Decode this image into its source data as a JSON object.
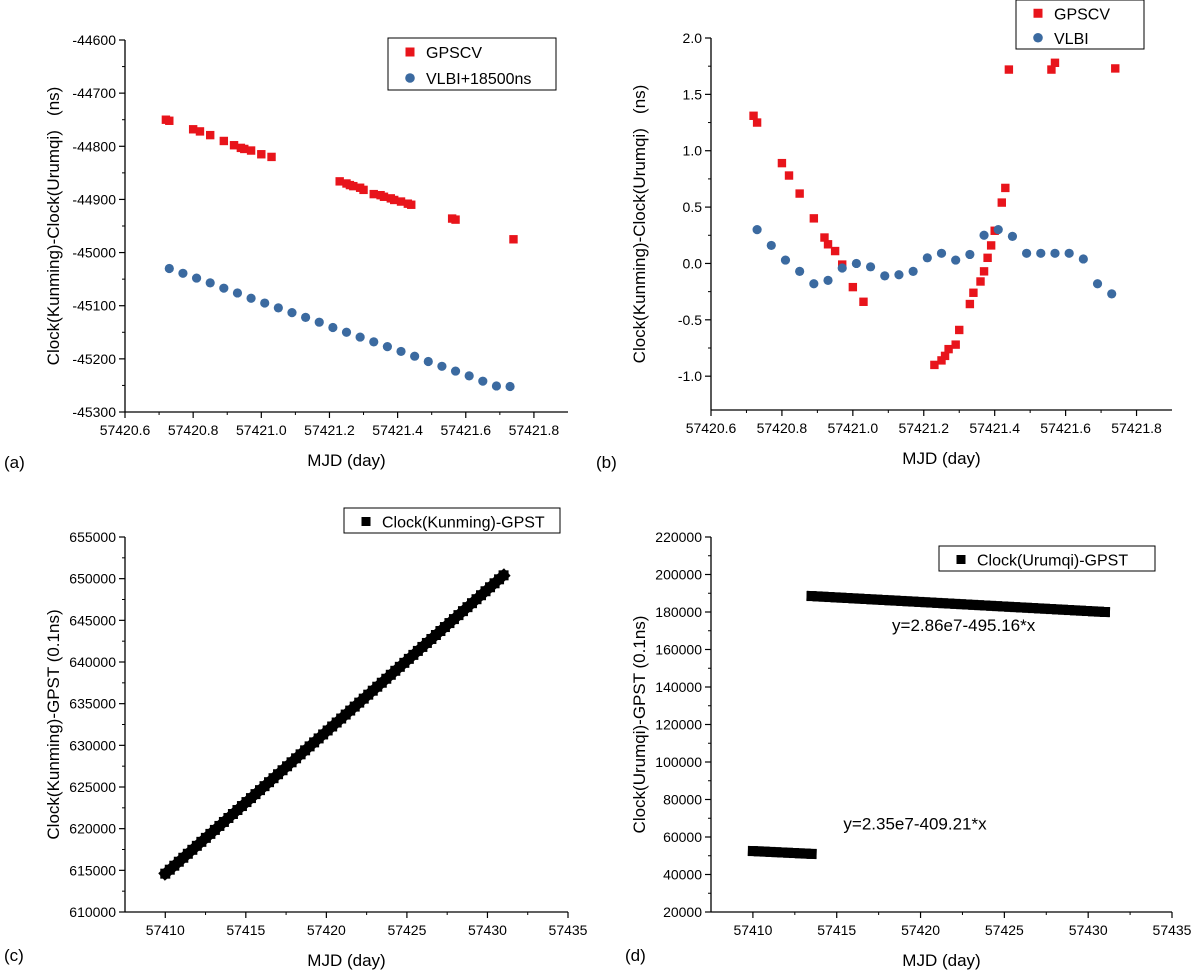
{
  "colors": {
    "red": "#e8141b",
    "blue": "#3b6aa0",
    "black": "#000000"
  },
  "chart_data": [
    {
      "id": "a",
      "type": "scatter",
      "panel_label": "(a)",
      "xlabel": "MJD (day)",
      "ylabel": "Clock(Kunming)-Clock(Urumqi)   (ns)",
      "xlim": [
        57420.6,
        57421.9
      ],
      "ylim": [
        -45300,
        -44600
      ],
      "xticks": [
        57420.6,
        57420.8,
        57421.0,
        57421.2,
        57421.4,
        57421.6,
        57421.8
      ],
      "xtick_labels": [
        "57420.6",
        "57420.8",
        "57421.0",
        "57421.2",
        "57421.4",
        "57421.6",
        "57421.8"
      ],
      "yticks": [
        -45300,
        -45200,
        -45100,
        -45000,
        -44900,
        -44800,
        -44700,
        -44600
      ],
      "ytick_labels": [
        "-45300",
        "-45200",
        "-45100",
        "-45000",
        "-44900",
        "-44800",
        "-44700",
        "-44600"
      ],
      "legend": [
        "GPSCV",
        "VLBI+18500ns"
      ],
      "series": [
        {
          "name": "GPSCV",
          "marker": "square",
          "color": "#e8141b",
          "x": [
            57420.72,
            57420.73,
            57420.8,
            57420.82,
            57420.85,
            57420.89,
            57420.92,
            57420.94,
            57420.95,
            57420.97,
            57421.0,
            57421.03,
            57421.23,
            57421.25,
            57421.26,
            57421.27,
            57421.29,
            57421.3,
            57421.33,
            57421.35,
            57421.36,
            57421.38,
            57421.39,
            57421.41,
            57421.43,
            57421.44,
            57421.56,
            57421.57,
            57421.74
          ],
          "y": [
            -44750,
            -44752,
            -44768,
            -44772,
            -44779,
            -44790,
            -44798,
            -44803,
            -44805,
            -44808,
            -44815,
            -44820,
            -44866,
            -44870,
            -44873,
            -44875,
            -44878,
            -44882,
            -44890,
            -44892,
            -44895,
            -44898,
            -44901,
            -44904,
            -44908,
            -44910,
            -44936,
            -44938,
            -44975
          ]
        },
        {
          "name": "VLBI+18500ns",
          "marker": "circle",
          "color": "#3b6aa0",
          "x": [
            57420.73,
            57420.77,
            57420.81,
            57420.85,
            57420.89,
            57420.93,
            57420.97,
            57421.01,
            57421.05,
            57421.09,
            57421.13,
            57421.17,
            57421.21,
            57421.25,
            57421.29,
            57421.33,
            57421.37,
            57421.41,
            57421.45,
            57421.49,
            57421.53,
            57421.57,
            57421.61,
            57421.65,
            57421.69,
            57421.73
          ],
          "y": [
            -45030,
            -45039,
            -45048,
            -45057,
            -45067,
            -45076,
            -45086,
            -45095,
            -45104,
            -45113,
            -45122,
            -45131,
            -45141,
            -45150,
            -45159,
            -45168,
            -45177,
            -45186,
            -45195,
            -45205,
            -45214,
            -45223,
            -45232,
            -45242,
            -45251,
            -45252
          ]
        }
      ]
    },
    {
      "id": "b",
      "type": "scatter",
      "panel_label": "(b)",
      "xlabel": "MJD (day)",
      "ylabel": "Clock(Kunming)-Clock(Urumqi)   (ns)",
      "xlim": [
        57420.6,
        57421.9
      ],
      "ylim": [
        -1.3,
        2.0
      ],
      "xticks": [
        57420.6,
        57420.8,
        57421.0,
        57421.2,
        57421.4,
        57421.6,
        57421.8
      ],
      "xtick_labels": [
        "57420.6",
        "57420.8",
        "57421.0",
        "57421.2",
        "57421.4",
        "57421.6",
        "57421.8"
      ],
      "yticks": [
        -1.0,
        -0.5,
        0.0,
        0.5,
        1.0,
        1.5,
        2.0
      ],
      "ytick_labels": [
        "-1.0",
        "-0.5",
        "0.0",
        "0.5",
        "1.0",
        "1.5",
        "2.0"
      ],
      "legend": [
        "GPSCV",
        "VLBI"
      ],
      "series": [
        {
          "name": "GPSCV",
          "marker": "square",
          "color": "#e8141b",
          "x": [
            57420.72,
            57420.73,
            57420.8,
            57420.82,
            57420.85,
            57420.89,
            57420.92,
            57420.93,
            57420.95,
            57420.97,
            57421.0,
            57421.03,
            57421.23,
            57421.25,
            57421.26,
            57421.27,
            57421.29,
            57421.3,
            57421.33,
            57421.34,
            57421.36,
            57421.37,
            57421.38,
            57421.39,
            57421.4,
            57421.42,
            57421.43,
            57421.44,
            57421.56,
            57421.57,
            57421.74
          ],
          "y": [
            1.31,
            1.25,
            0.89,
            0.78,
            0.62,
            0.4,
            0.23,
            0.17,
            0.11,
            -0.01,
            -0.21,
            -0.34,
            -0.9,
            -0.86,
            -0.82,
            -0.76,
            -0.72,
            -0.59,
            -0.36,
            -0.26,
            -0.16,
            -0.07,
            0.05,
            0.16,
            0.29,
            0.54,
            0.67,
            1.72,
            1.72,
            1.78,
            1.73
          ]
        },
        {
          "name": "VLBI",
          "marker": "circle",
          "color": "#3b6aa0",
          "x": [
            57420.73,
            57420.77,
            57420.81,
            57420.85,
            57420.89,
            57420.93,
            57420.97,
            57421.01,
            57421.05,
            57421.09,
            57421.13,
            57421.17,
            57421.21,
            57421.25,
            57421.29,
            57421.33,
            57421.37,
            57421.41,
            57421.45,
            57421.49,
            57421.53,
            57421.57,
            57421.61,
            57421.65,
            57421.69,
            57421.73
          ],
          "y": [
            0.3,
            0.16,
            0.03,
            -0.07,
            -0.18,
            -0.15,
            -0.04,
            0.0,
            -0.03,
            -0.11,
            -0.1,
            -0.07,
            0.05,
            0.09,
            0.03,
            0.08,
            0.25,
            0.3,
            0.24,
            0.09,
            0.09,
            0.09,
            0.09,
            0.04,
            -0.18,
            -0.27
          ]
        }
      ]
    },
    {
      "id": "c",
      "type": "line",
      "panel_label": "(c)",
      "xlabel": "MJD (day)",
      "ylabel": "Clock(Kunming)-GPST (0.1ns)",
      "xlim": [
        57407.5,
        57435
      ],
      "ylim": [
        610000,
        655000
      ],
      "xticks": [
        57410,
        57415,
        57420,
        57425,
        57430,
        57435
      ],
      "xtick_labels": [
        "57410",
        "57415",
        "57420",
        "57425",
        "57430",
        "57435"
      ],
      "yticks": [
        610000,
        615000,
        620000,
        625000,
        630000,
        635000,
        640000,
        645000,
        650000,
        655000
      ],
      "ytick_labels": [
        "610000",
        "615000",
        "620000",
        "625000",
        "630000",
        "635000",
        "640000",
        "645000",
        "650000",
        "655000"
      ],
      "legend": [
        "Clock(Kunming)-GPST"
      ],
      "series": [
        {
          "name": "Clock(Kunming)-GPST",
          "marker": "square",
          "color": "#000000",
          "x": [
            57410.0,
            57431.0
          ],
          "y": [
            614600,
            650400
          ]
        }
      ]
    },
    {
      "id": "d",
      "type": "line",
      "panel_label": "(d)",
      "xlabel": "MJD (day)",
      "ylabel": "Clock(Urumqi)-GPST (0.1ns)",
      "xlim": [
        57407.5,
        57435
      ],
      "ylim": [
        20000,
        220000
      ],
      "xticks": [
        57410,
        57415,
        57420,
        57425,
        57430,
        57435
      ],
      "xtick_labels": [
        "57410",
        "57415",
        "57420",
        "57425",
        "57430",
        "57435"
      ],
      "yticks": [
        20000,
        40000,
        60000,
        80000,
        100000,
        120000,
        140000,
        160000,
        180000,
        200000,
        220000
      ],
      "ytick_labels": [
        "20000",
        "40000",
        "60000",
        "80000",
        "100000",
        "120000",
        "140000",
        "160000",
        "180000",
        "200000",
        "220000"
      ],
      "legend": [
        "Clock(Urumqi)-GPST"
      ],
      "series": [
        {
          "name": "Clock(Urumqi)-GPST segment 1",
          "marker": "square",
          "color": "#000000",
          "x": [
            57410.0,
            57413.5
          ],
          "y": [
            52500,
            51000
          ]
        },
        {
          "name": "Clock(Urumqi)-GPST segment 2",
          "marker": "square",
          "color": "#000000",
          "x": [
            57413.5,
            57431.0
          ],
          "y": [
            188500,
            180000
          ]
        }
      ],
      "annotations": [
        {
          "text": "y=2.86e7-495.16*x",
          "x": 57418.3,
          "y": 170000
        },
        {
          "text": "y=2.35e7-409.21*x",
          "x": 57415.4,
          "y": 64000
        }
      ]
    }
  ]
}
